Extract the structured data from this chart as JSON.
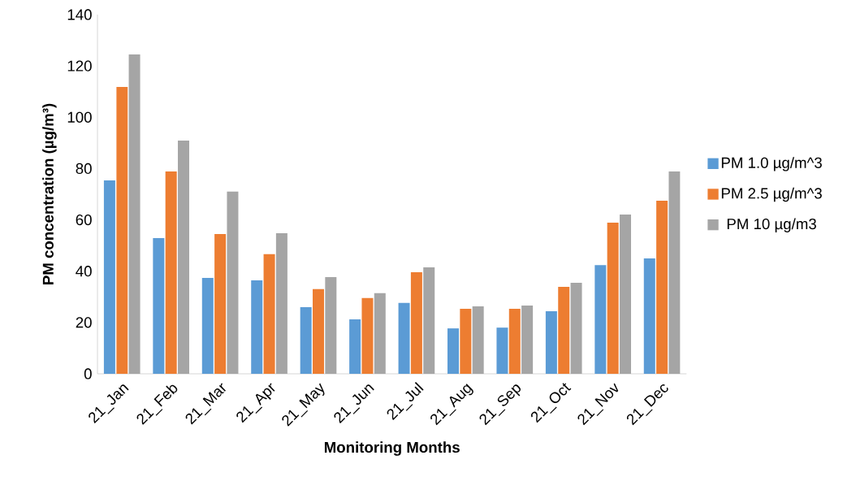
{
  "chart_data": {
    "type": "bar",
    "xlabel": "Monitoring Months",
    "ylabel": "PM concentration (µg/m³)",
    "categories": [
      "21_Jan",
      "21_Feb",
      "21_Mar",
      "21_Apr",
      "21_May",
      "21_Jun",
      "21_Jul",
      "21_Aug",
      "21_Sep",
      "21_Oct",
      "21_Nov",
      "21_Dec"
    ],
    "series": [
      {
        "name": "PM 1.0 µg/m^3",
        "color": "#5b9bd5",
        "values": [
          75.4,
          52.9,
          37.4,
          36.4,
          26,
          21.2,
          27.6,
          17.7,
          18,
          24.4,
          42.4,
          45
        ]
      },
      {
        "name": "PM 2.5 µg/m^3",
        "color": "#ed7d31",
        "values": [
          111.8,
          78.9,
          54.5,
          46.6,
          33,
          29.5,
          39.6,
          25.3,
          25.3,
          33.9,
          58.9,
          67.5
        ]
      },
      {
        "name": "PM 10 µg/m3",
        "color": "#a5a5a5",
        "values": [
          124.5,
          90.9,
          71,
          54.8,
          37.7,
          31.4,
          41.5,
          26.3,
          26.6,
          35.5,
          62.1,
          78.9
        ]
      }
    ],
    "ylim": [
      0,
      140
    ],
    "yticks": [
      0,
      20,
      40,
      60,
      80,
      100,
      120,
      140
    ],
    "grid": false,
    "legend": "right"
  }
}
